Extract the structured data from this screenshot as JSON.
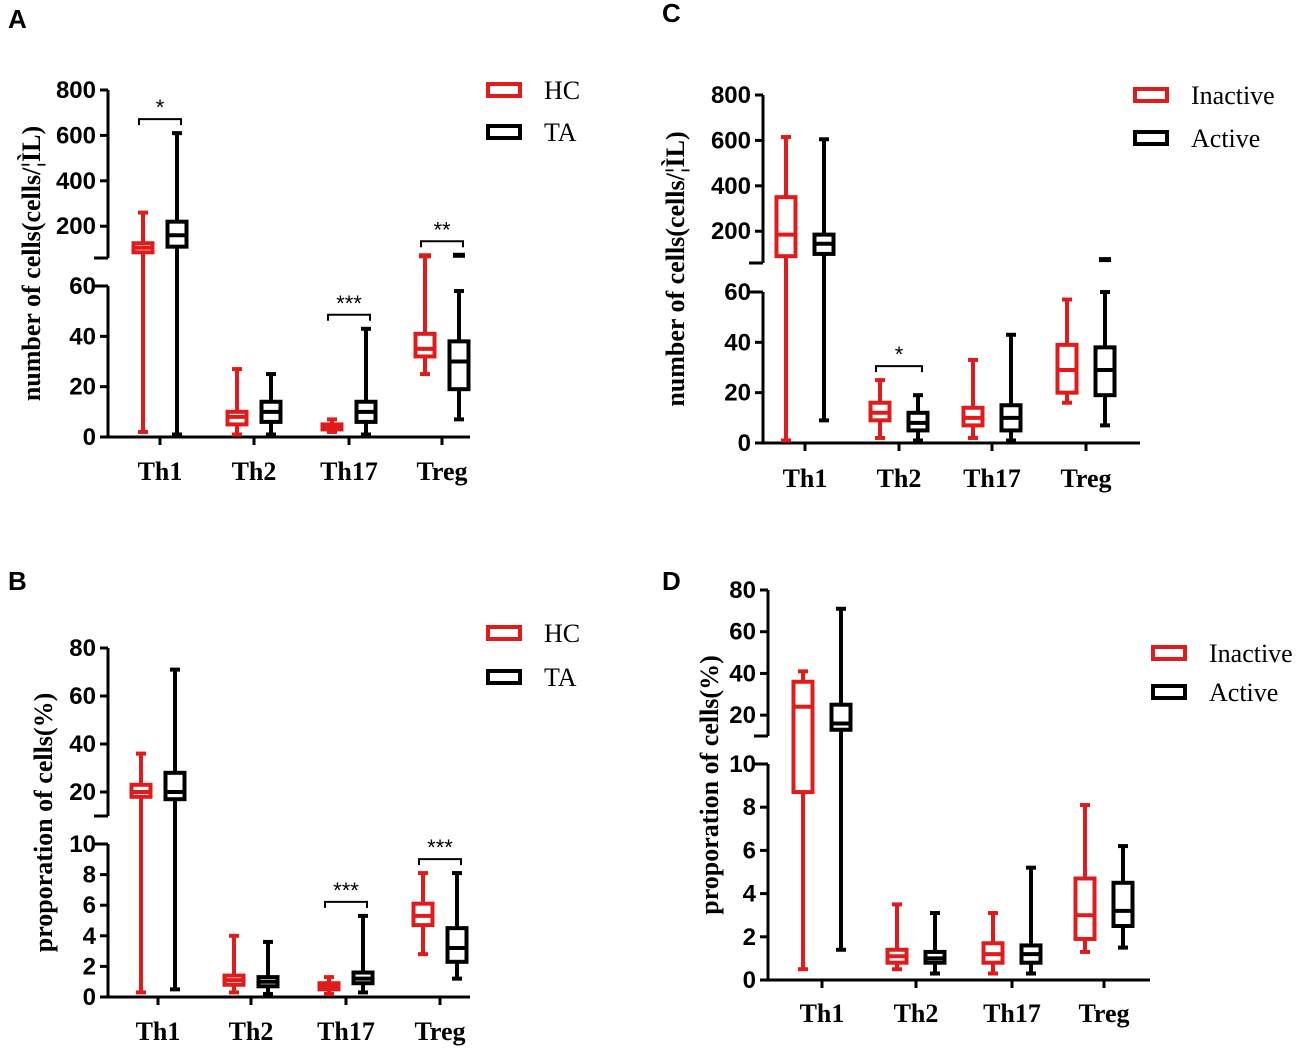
{
  "colors": {
    "group1": "#e11b1b",
    "group2": "#000000"
  },
  "chart_data": [
    {
      "panel": "A",
      "type": "box",
      "ylabel": "number of  cells(cells/¦ÌL)",
      "categories": [
        "Th1",
        "Th2",
        "Th17",
        "Treg"
      ],
      "legend": [
        "HC",
        "TA"
      ],
      "legend_position": "top-right",
      "axis_break": {
        "lower": {
          "ylim": [
            0,
            60
          ],
          "ticks": [
            "0",
            "20",
            "40",
            "60"
          ]
        },
        "upper": {
          "ylim": [
            60,
            800
          ],
          "ticks": [
            "200",
            "400",
            "600",
            "800"
          ]
        }
      },
      "series": [
        {
          "name": "HC",
          "boxes": [
            {
              "min": 2,
              "q1": 85,
              "median": 105,
              "q3": 125,
              "max": 260
            },
            {
              "min": 1,
              "q1": 5,
              "median": 8,
              "q3": 10,
              "max": 27
            },
            {
              "min": 2,
              "q1": 3,
              "median": 4,
              "q3": 5,
              "max": 7
            },
            {
              "min": 25,
              "q1": 32,
              "median": 35,
              "q3": 41,
              "max": 68,
              "outliers": [
                70
              ]
            }
          ]
        },
        {
          "name": "TA",
          "boxes": [
            {
              "min": 1,
              "q1": 110,
              "median": 160,
              "q3": 220,
              "max": 610
            },
            {
              "min": 1,
              "q1": 6,
              "median": 10,
              "q3": 14,
              "max": 25
            },
            {
              "min": 1,
              "q1": 6,
              "median": 10,
              "q3": 14,
              "max": 43
            },
            {
              "min": 7,
              "q1": 19,
              "median": 30,
              "q3": 38,
              "max": 58,
              "outliers": [
                72
              ]
            }
          ]
        }
      ],
      "significance": [
        {
          "category": "Th1",
          "label": "*"
        },
        {
          "category": "Th17",
          "label": "***"
        },
        {
          "category": "Treg",
          "label": "**"
        }
      ]
    },
    {
      "panel": "B",
      "type": "box",
      "ylabel": "proporation of cells(%)",
      "categories": [
        "Th1",
        "Th2",
        "Th17",
        "Treg"
      ],
      "legend": [
        "HC",
        "TA"
      ],
      "legend_position": "top-right",
      "axis_break": {
        "lower": {
          "ylim": [
            0,
            10
          ],
          "ticks": [
            "0",
            "2",
            "4",
            "6",
            "8",
            "10"
          ]
        },
        "upper": {
          "ylim": [
            10,
            80
          ],
          "ticks": [
            "20",
            "40",
            "60",
            "80"
          ]
        }
      },
      "series": [
        {
          "name": "HC",
          "boxes": [
            {
              "min": 0.3,
              "q1": 18,
              "median": 20,
              "q3": 23,
              "max": 36
            },
            {
              "min": 0.3,
              "q1": 0.8,
              "median": 1.1,
              "q3": 1.4,
              "max": 4
            },
            {
              "min": 0.2,
              "q1": 0.5,
              "median": 0.7,
              "q3": 0.9,
              "max": 1.3
            },
            {
              "min": 2.8,
              "q1": 4.7,
              "median": 5.3,
              "q3": 6.1,
              "max": 8.1
            }
          ]
        },
        {
          "name": "TA",
          "boxes": [
            {
              "min": 0.5,
              "q1": 17,
              "median": 20,
              "q3": 28,
              "max": 71
            },
            {
              "min": 0.2,
              "q1": 0.7,
              "median": 1.0,
              "q3": 1.3,
              "max": 3.6
            },
            {
              "min": 0.3,
              "q1": 0.9,
              "median": 1.2,
              "q3": 1.6,
              "max": 5.3
            },
            {
              "min": 1.2,
              "q1": 2.3,
              "median": 3.2,
              "q3": 4.5,
              "max": 8.1
            }
          ]
        }
      ],
      "significance": [
        {
          "category": "Th17",
          "label": "***"
        },
        {
          "category": "Treg",
          "label": "***"
        }
      ]
    },
    {
      "panel": "C",
      "type": "box",
      "ylabel": "number of  cells(cells/¦ÌL)",
      "categories": [
        "Th1",
        "Th2",
        "Th17",
        "Treg"
      ],
      "legend": [
        "Inactive",
        "Active"
      ],
      "legend_position": "top-right",
      "axis_break": {
        "lower": {
          "ylim": [
            0,
            60
          ],
          "ticks": [
            "0",
            "20",
            "40",
            "60"
          ]
        },
        "upper": {
          "ylim": [
            60,
            800
          ],
          "ticks": [
            "200",
            "400",
            "600",
            "800"
          ]
        }
      },
      "series": [
        {
          "name": "Inactive",
          "boxes": [
            {
              "min": 1,
              "q1": 90,
              "median": 185,
              "q3": 350,
              "max": 615
            },
            {
              "min": 2,
              "q1": 9,
              "median": 12,
              "q3": 16,
              "max": 25
            },
            {
              "min": 2,
              "q1": 7,
              "median": 10,
              "q3": 14,
              "max": 33
            },
            {
              "min": 16,
              "q1": 20,
              "median": 29,
              "q3": 39,
              "max": 57
            }
          ]
        },
        {
          "name": "Active",
          "boxes": [
            {
              "min": 9,
              "q1": 100,
              "median": 145,
              "q3": 185,
              "max": 605
            },
            {
              "min": 1,
              "q1": 5,
              "median": 8,
              "q3": 12,
              "max": 19
            },
            {
              "min": 1,
              "q1": 5,
              "median": 10,
              "q3": 15,
              "max": 43
            },
            {
              "min": 7,
              "q1": 19,
              "median": 29,
              "q3": 38,
              "max": 60,
              "outliers": [
                75
              ]
            }
          ]
        }
      ],
      "significance": [
        {
          "category": "Th2",
          "label": "*"
        }
      ]
    },
    {
      "panel": "D",
      "type": "box",
      "ylabel": "proporation of cells(%)",
      "categories": [
        "Th1",
        "Th2",
        "Th17",
        "Treg"
      ],
      "legend": [
        "Inactive",
        "Active"
      ],
      "legend_position": "right",
      "axis_break": {
        "lower": {
          "ylim": [
            0,
            10
          ],
          "ticks": [
            "0",
            "2",
            "4",
            "6",
            "8",
            "10"
          ]
        },
        "upper": {
          "ylim": [
            10,
            80
          ],
          "ticks": [
            "20",
            "40",
            "60",
            "80"
          ]
        }
      },
      "series": [
        {
          "name": "Inactive",
          "boxes": [
            {
              "min": 0.5,
              "q1": 8.7,
              "median": 24,
              "q3": 36,
              "max": 41
            },
            {
              "min": 0.5,
              "q1": 0.8,
              "median": 1.1,
              "q3": 1.4,
              "max": 3.5
            },
            {
              "min": 0.3,
              "q1": 0.8,
              "median": 1.2,
              "q3": 1.7,
              "max": 3.1
            },
            {
              "min": 1.3,
              "q1": 1.9,
              "median": 3.0,
              "q3": 4.7,
              "max": 8.1
            }
          ]
        },
        {
          "name": "Active",
          "boxes": [
            {
              "min": 1.4,
              "q1": 13,
              "median": 16,
              "q3": 25,
              "max": 71
            },
            {
              "min": 0.3,
              "q1": 0.8,
              "median": 1.0,
              "q3": 1.3,
              "max": 3.1
            },
            {
              "min": 0.3,
              "q1": 0.8,
              "median": 1.2,
              "q3": 1.6,
              "max": 5.2
            },
            {
              "min": 1.5,
              "q1": 2.5,
              "median": 3.2,
              "q3": 4.5,
              "max": 6.2
            }
          ]
        }
      ],
      "significance": []
    }
  ]
}
